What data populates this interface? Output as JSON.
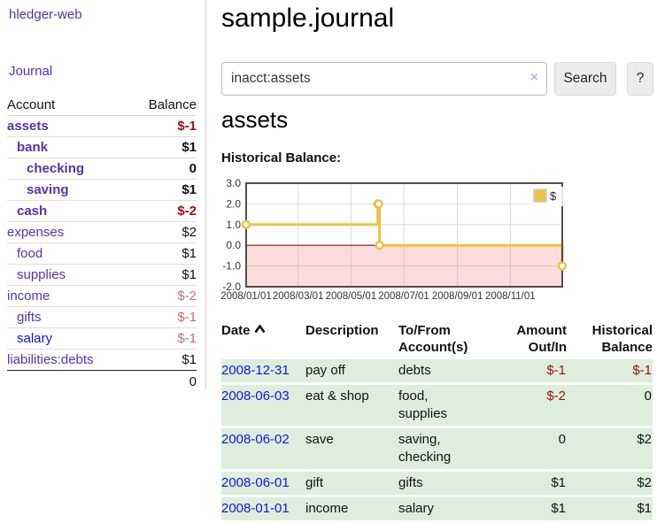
{
  "app": {
    "brand": "hledger-web",
    "nav_journal": "Journal"
  },
  "sidebar": {
    "account_header": "Account",
    "balance_header": "Balance",
    "accounts": [
      {
        "name": "assets",
        "indent": 0,
        "bold": true,
        "balance": "$-1",
        "balance_style": "neg-strong"
      },
      {
        "name": "bank",
        "indent": 1,
        "bold": true,
        "balance": "$1",
        "balance_style": "pos"
      },
      {
        "name": "checking",
        "indent": 2,
        "bold": true,
        "balance": "0",
        "balance_style": "pos"
      },
      {
        "name": "saving",
        "indent": 2,
        "bold": true,
        "balance": "$1",
        "balance_style": "pos"
      },
      {
        "name": "cash",
        "indent": 1,
        "bold": true,
        "balance": "$-2",
        "balance_style": "neg-strong"
      },
      {
        "name": "expenses",
        "indent": 0,
        "bold": false,
        "balance": "$2",
        "balance_style": "pos"
      },
      {
        "name": "food",
        "indent": 1,
        "bold": false,
        "balance": "$1",
        "balance_style": "pos"
      },
      {
        "name": "supplies",
        "indent": 1,
        "bold": false,
        "balance": "$1",
        "balance_style": "pos"
      },
      {
        "name": "income",
        "indent": 0,
        "bold": false,
        "balance": "$-2",
        "balance_style": "neg-soft"
      },
      {
        "name": "gifts",
        "indent": 1,
        "bold": false,
        "balance": "$-1",
        "balance_style": "neg-soft"
      },
      {
        "name": "salary",
        "indent": 1,
        "bold": false,
        "link_color": "blue",
        "balance": "$-1",
        "balance_style": "neg-soft"
      },
      {
        "name": "liabilities:debts",
        "indent": 0,
        "bold": false,
        "balance": "$1",
        "balance_style": "pos"
      }
    ],
    "total": "0"
  },
  "header": {
    "title": "sample.journal"
  },
  "search": {
    "value": "inacct:assets",
    "clear_icon": "×",
    "button_label": "Search",
    "help_label": "?"
  },
  "account_page": {
    "title": "assets",
    "chart_label": "Historical Balance:"
  },
  "chart_data": {
    "type": "line",
    "step": true,
    "title": "Historical Balance:",
    "legend": {
      "position": "top-right"
    },
    "ylim": [
      -2,
      3
    ],
    "x_range": [
      "2008-01-01",
      "2008-12-31"
    ],
    "grid": true,
    "y_ticks": [
      {
        "value": 3,
        "label": "3.0"
      },
      {
        "value": 2,
        "label": "2.0"
      },
      {
        "value": 1,
        "label": "1.0"
      },
      {
        "value": 0,
        "label": "0.0"
      },
      {
        "value": -1,
        "label": "-1.0"
      },
      {
        "value": -2,
        "label": "-2.0"
      }
    ],
    "x_ticks": [
      {
        "date": "2008-01-01",
        "label": "2008/01/01"
      },
      {
        "date": "2008-03-01",
        "label": "2008/03/01"
      },
      {
        "date": "2008-05-01",
        "label": "2008/05/01"
      },
      {
        "date": "2008-07-01",
        "label": "2008/07/01"
      },
      {
        "date": "2008-09-01",
        "label": "2008/09/01"
      },
      {
        "date": "2008-11-01",
        "label": "2008/11/01"
      }
    ],
    "series": [
      {
        "name": "$",
        "color": "#e9c244",
        "marker_fill": "#ffffff",
        "points": [
          {
            "date": "2008-01-01",
            "value": 1
          },
          {
            "date": "2008-06-01",
            "value": 2
          },
          {
            "date": "2008-06-02",
            "value": 2
          },
          {
            "date": "2008-06-03",
            "value": 0
          },
          {
            "date": "2008-12-31",
            "value": -1
          }
        ]
      }
    ],
    "colors": {
      "border": "#4f4f4f",
      "gridline": "#d8d8d8",
      "negative_fill": "#ff8080",
      "zero_line": "#8b1a1a",
      "tick_text": "#333333"
    }
  },
  "register": {
    "headers": [
      {
        "lines": [
          "Date"
        ],
        "sort": true,
        "align": "left"
      },
      {
        "lines": [
          "Description"
        ],
        "align": "left"
      },
      {
        "lines": [
          "To/From",
          "Account(s)"
        ],
        "align": "left"
      },
      {
        "lines": [
          "Amount",
          "Out/In"
        ],
        "align": "right"
      },
      {
        "lines": [
          "Historical",
          "Balance"
        ],
        "align": "right"
      }
    ],
    "rows": [
      {
        "date": "2008-12-31",
        "description": "pay off",
        "to_from_lines": [
          "debts"
        ],
        "amount": "$-1",
        "amount_negative": true,
        "balance": "$-1",
        "balance_negative": true
      },
      {
        "date": "2008-06-03",
        "description": "eat & shop",
        "to_from_lines": [
          "food, supplies"
        ],
        "amount": "$-2",
        "amount_negative": true,
        "balance": "0",
        "balance_negative": false
      },
      {
        "date": "2008-06-02",
        "description": "save",
        "to_from_lines": [
          "saving,",
          "checking"
        ],
        "amount": "0",
        "amount_negative": false,
        "balance": "$2",
        "balance_negative": false
      },
      {
        "date": "2008-06-01",
        "description": "gift",
        "to_from_lines": [
          "gifts"
        ],
        "amount": "$1",
        "amount_negative": false,
        "balance": "$2",
        "balance_negative": false
      },
      {
        "date": "2008-01-01",
        "description": "income",
        "to_from_lines": [
          "salary"
        ],
        "amount": "$1",
        "amount_negative": false,
        "balance": "$1",
        "balance_negative": false
      }
    ]
  }
}
